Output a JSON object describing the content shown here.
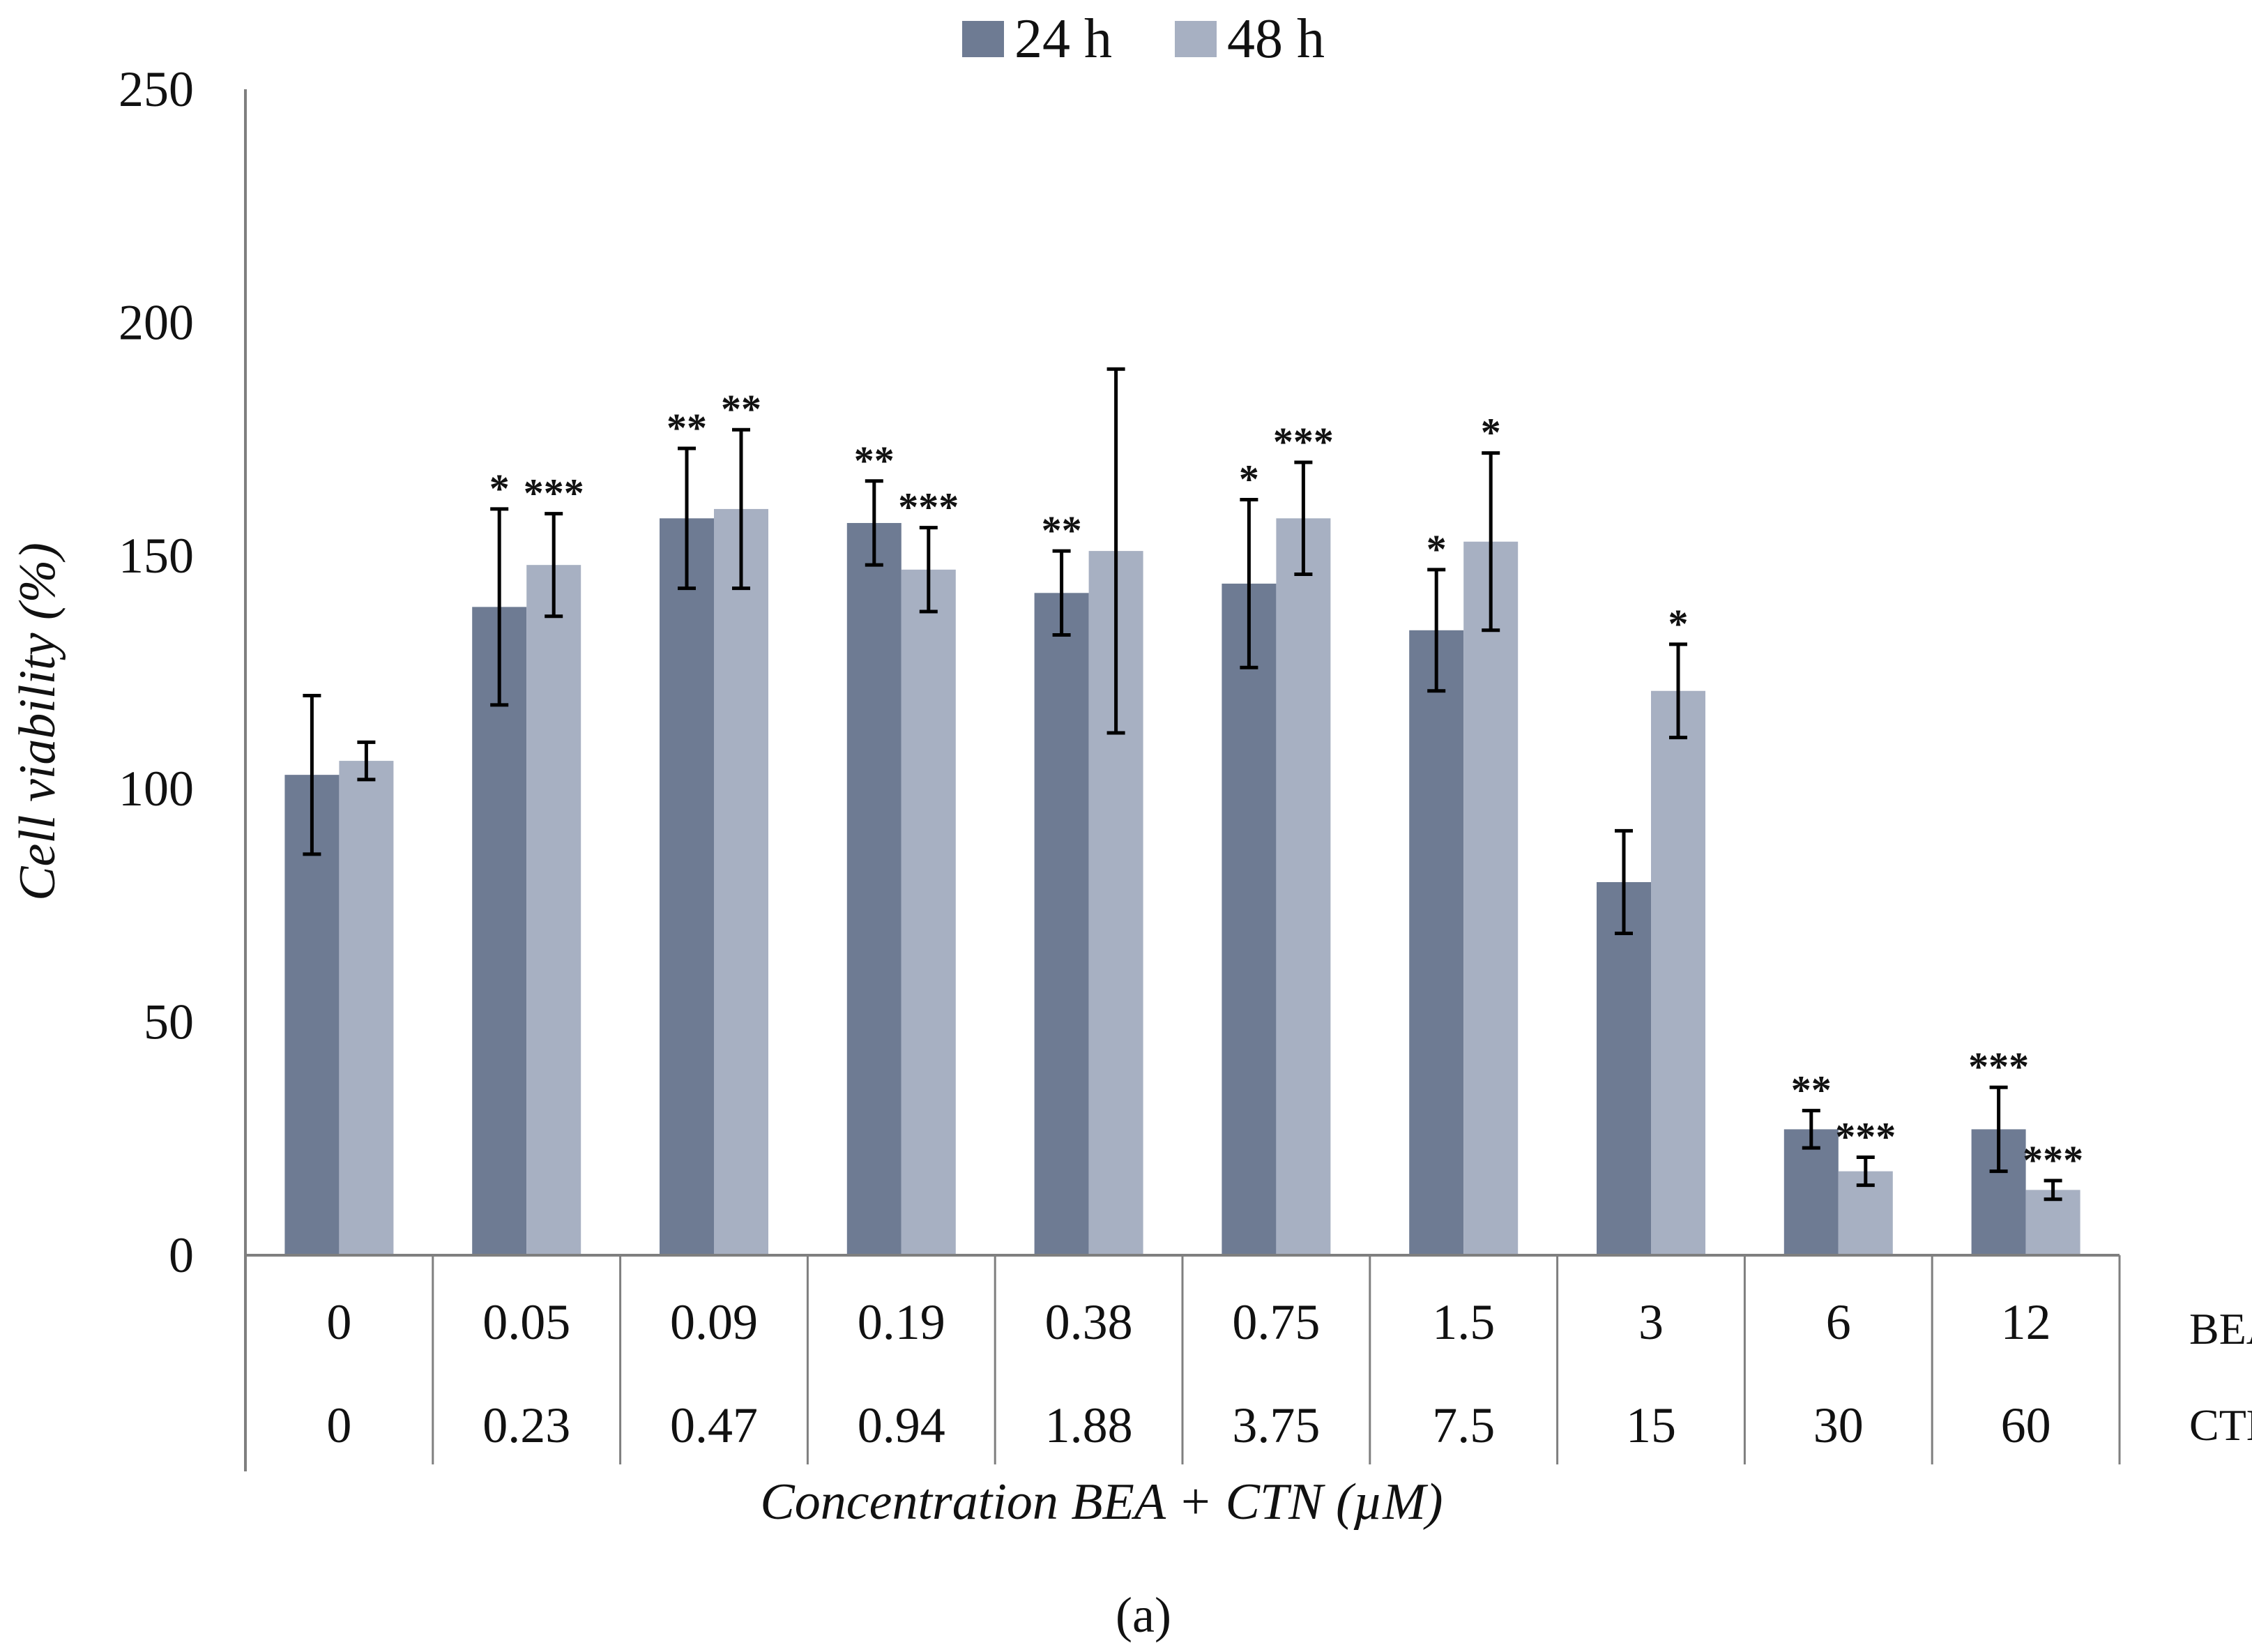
{
  "chart_data": {
    "type": "bar",
    "title": "",
    "xlabel": "Concentration BEA + CTN (µM)",
    "ylabel": "Cell viability (%)",
    "ylim": [
      0,
      250
    ],
    "yticks": [
      "0",
      "50",
      "100",
      "150",
      "200",
      "250"
    ],
    "grid": false,
    "legend_position": "top-center",
    "row_labels": {
      "bea": "BEA",
      "ctn": "CTN"
    },
    "categories_bea": [
      "0",
      "0.05",
      "0.09",
      "0.19",
      "0.38",
      "0.75",
      "1.5",
      "3",
      "6",
      "12"
    ],
    "categories_ctn": [
      "0",
      "0.23",
      "0.47",
      "0.94",
      "1.88",
      "3.75",
      "7.5",
      "15",
      "30",
      "60"
    ],
    "series": [
      {
        "name": "24 h",
        "color": "#6e7b93",
        "values": [
          103,
          139,
          158,
          157,
          142,
          144,
          134,
          80,
          27,
          27
        ],
        "error": [
          17,
          21,
          15,
          9,
          9,
          18,
          13,
          11,
          4,
          9
        ],
        "significance": [
          "",
          "*",
          "**",
          "**",
          "**",
          "*",
          "*",
          "",
          "**",
          "***"
        ]
      },
      {
        "name": "48 h",
        "color": "#a7b0c2",
        "values": [
          106,
          148,
          160,
          147,
          151,
          158,
          153,
          121,
          18,
          14
        ],
        "error": [
          4,
          11,
          17,
          9,
          39,
          12,
          19,
          10,
          3,
          2
        ],
        "significance": [
          "",
          "***",
          "**",
          "***",
          "",
          "***",
          "*",
          "*",
          "***",
          "***"
        ]
      }
    ],
    "panel_label": "(a)"
  }
}
